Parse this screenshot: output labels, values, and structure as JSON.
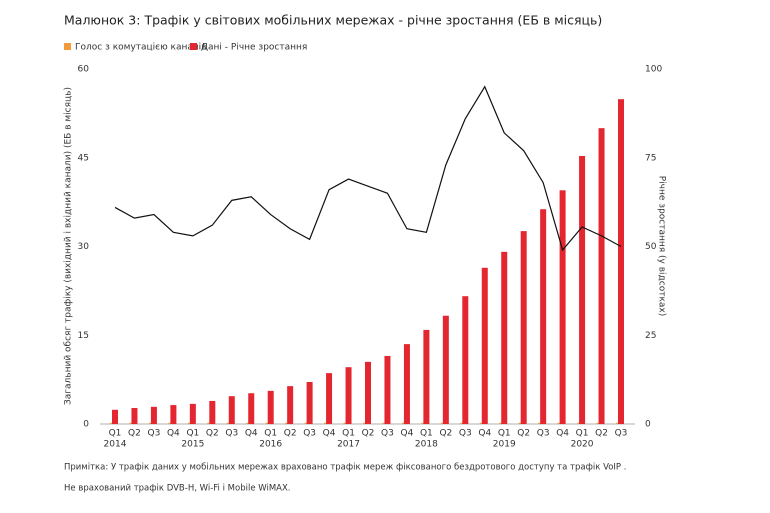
{
  "chart_data": {
    "type": "bar",
    "title": "Малюнок 3: Трафік у світових мобільних мережах - річне зростання (ЕБ в місяць)",
    "categories": [
      "Q1",
      "Q2",
      "Q3",
      "Q4",
      "Q1",
      "Q2",
      "Q3",
      "Q4",
      "Q1",
      "Q2",
      "Q3",
      "Q4",
      "Q1",
      "Q2",
      "Q3",
      "Q4",
      "Q1",
      "Q2",
      "Q3",
      "Q4",
      "Q1",
      "Q2",
      "Q3",
      "Q4",
      "Q1",
      "Q2",
      "Q3"
    ],
    "years": [
      "2014",
      "2015",
      "2016",
      "2017",
      "2018",
      "2019",
      "2020"
    ],
    "ylabel": "Загальний обсяг трафіку (вихідний і вхідний канали) (ЕБ в місяць)",
    "y2label": "Річне зростання (у відсотках)",
    "ylim": [
      0,
      60
    ],
    "yticks": [
      0,
      15,
      30,
      45,
      60
    ],
    "y2lim": [
      0,
      100
    ],
    "y2ticks": [
      0,
      25,
      50,
      75,
      100
    ],
    "series": [
      {
        "name": "Голос з комутацією каналів",
        "color": "#f39a3c",
        "values": [
          0.2,
          0.2,
          0.2,
          0.2,
          0.2,
          0.2,
          0.2,
          0.2,
          0.2,
          0.2,
          0.2,
          0.2,
          0.2,
          0.2,
          0.2,
          0.2,
          0.2,
          0.2,
          0.2,
          0.2,
          0.2,
          0.2,
          0.2,
          0.2,
          0.2,
          0.2,
          0.2
        ]
      },
      {
        "name": "Дані - Річне зростання",
        "color": "#e3262f",
        "values": [
          2.4,
          2.7,
          2.9,
          3.2,
          3.4,
          3.9,
          4.7,
          5.2,
          5.6,
          6.4,
          7.1,
          8.6,
          9.6,
          10.5,
          11.5,
          13.5,
          15.9,
          18.3,
          21.6,
          26.4,
          29.1,
          32.6,
          36.3,
          39.5,
          45.3,
          50.0,
          54.9
        ]
      },
      {
        "type": "line",
        "axis": "y2",
        "color": "#111111",
        "values": [
          61,
          58,
          59,
          54,
          53,
          56,
          63,
          64,
          59,
          55,
          52,
          66,
          69,
          67,
          65,
          55,
          54,
          73,
          86,
          95,
          82,
          77,
          68,
          49,
          55.5,
          53,
          50
        ]
      }
    ],
    "notes": [
      "Примітка: У трафік даних у мобільних мережах враховано трафік мереж фіксованого бездротового доступу та трафік VoIP .",
      "Не врахований трафік DVB-H, Wi-Fi і Mobile WiMAX."
    ]
  }
}
